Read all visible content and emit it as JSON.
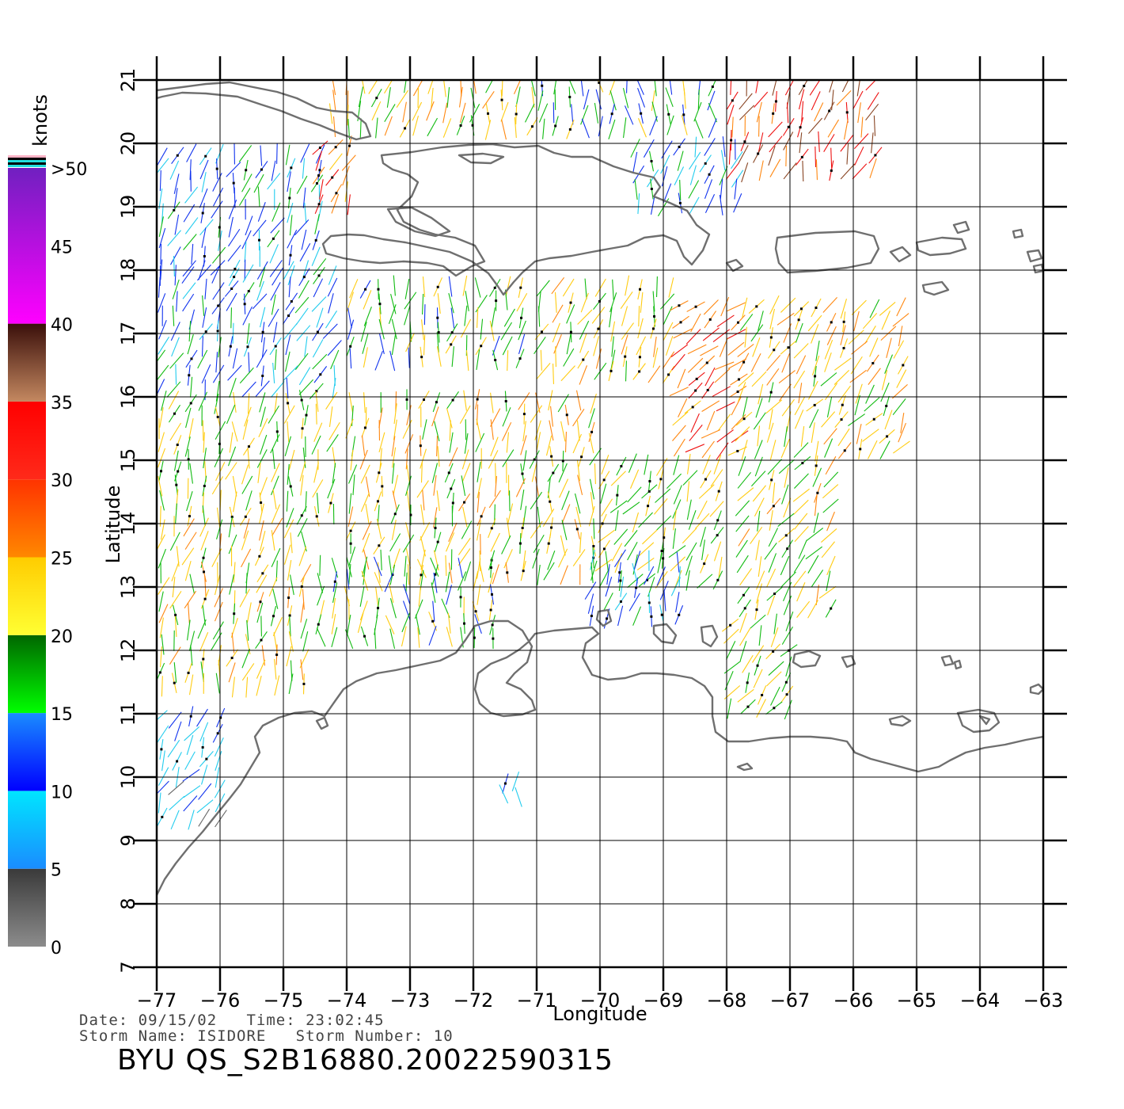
{
  "map": {
    "lon_range": [
      -77,
      -63
    ],
    "lat_range": [
      7,
      21
    ],
    "x_ticks": [
      -77,
      -76,
      -75,
      -74,
      -73,
      -72,
      -71,
      -70,
      -69,
      -68,
      -67,
      -66,
      -65,
      -64,
      -63
    ],
    "y_ticks": [
      7,
      8,
      9,
      10,
      11,
      12,
      13,
      14,
      15,
      16,
      17,
      18,
      19,
      20,
      21
    ],
    "xlabel": "Longitude",
    "ylabel": "Latitude",
    "grid": true,
    "coast_color": "#6f6f6f"
  },
  "legend": {
    "title": "knots",
    "bins": [
      {
        "from": 0,
        "to": 5,
        "top": "#3a3a3a",
        "bottom": "#8c8c8c"
      },
      {
        "from": 5,
        "to": 10,
        "top": "#00e6ff",
        "bottom": "#1a8cff"
      },
      {
        "from": 10,
        "to": 15,
        "top": "#1a8cff",
        "bottom": "#0000ff"
      },
      {
        "from": 15,
        "to": 20,
        "top": "#006600",
        "bottom": "#00ff00"
      },
      {
        "from": 20,
        "to": 25,
        "top": "#ffcc00",
        "bottom": "#ffff33"
      },
      {
        "from": 25,
        "to": 30,
        "top": "#ff3300",
        "bottom": "#ff8800"
      },
      {
        "from": 30,
        "to": 35,
        "top": "#ff0000",
        "bottom": "#ff2a1a"
      },
      {
        "from": 35,
        "to": 40,
        "top": "#3a0f0a",
        "bottom": "#c48860"
      },
      {
        "from": 40,
        "to": 50,
        "top": "#7020c0",
        "bottom": "#ff00ff"
      }
    ],
    "labels": [
      {
        "value": 0,
        "text": "0"
      },
      {
        "value": 5,
        "text": "5"
      },
      {
        "value": 10,
        "text": "10"
      },
      {
        "value": 15,
        "text": "15"
      },
      {
        "value": 20,
        "text": "20"
      },
      {
        "value": 25,
        "text": "25"
      },
      {
        "value": 30,
        "text": "30"
      },
      {
        "value": 35,
        "text": "35"
      },
      {
        "value": 40,
        "text": "40"
      },
      {
        "value": 45,
        "text": "45"
      },
      {
        "value": 50,
        "text": ">50"
      }
    ],
    "cap_stripes": [
      "#ffb3c6",
      "#000000",
      "#22dddd",
      "#000000",
      "#22dddd"
    ]
  },
  "info": {
    "date_time": "Date: 09/15/02   Time: 23:02:45",
    "storm": "Storm Name: ISIDORE   Storm Number: 10",
    "product_id": "BYU  QS_S2B16880.20022590315"
  },
  "wind_regions": [
    {
      "lon": [
        -77.0,
        -74.3
      ],
      "lat": [
        18.0,
        19.9
      ],
      "speed": 12,
      "dir": 250
    },
    {
      "lon": [
        -74.5,
        -73.8
      ],
      "lat": [
        19.0,
        20.0
      ],
      "speed": 28,
      "dir": 60
    },
    {
      "lon": [
        -74.3,
        -71.0
      ],
      "lat": [
        20.1,
        21.0
      ],
      "speed": 22,
      "dir": 80
    },
    {
      "lon": [
        -71.0,
        -68.0
      ],
      "lat": [
        20.2,
        21.0
      ],
      "speed": 16,
      "dir": 90
    },
    {
      "lon": [
        -69.5,
        -67.8
      ],
      "lat": [
        19.0,
        20.0
      ],
      "speed": 12,
      "dir": 80
    },
    {
      "lon": [
        -68.0,
        -65.5
      ],
      "lat": [
        19.4,
        21.0
      ],
      "speed": 33,
      "dir": 70
    },
    {
      "lon": [
        -77.0,
        -74.0
      ],
      "lat": [
        16.0,
        18.0
      ],
      "speed": 12,
      "dir": 70
    },
    {
      "lon": [
        -74.0,
        -71.0
      ],
      "lat": [
        16.5,
        17.8
      ],
      "speed": 18,
      "dir": 80
    },
    {
      "lon": [
        -71.0,
        -68.8
      ],
      "lat": [
        16.3,
        17.8
      ],
      "speed": 21,
      "dir": 70
    },
    {
      "lon": [
        -68.8,
        -67.8
      ],
      "lat": [
        15.0,
        17.5
      ],
      "speed": 29,
      "dir": 45
    },
    {
      "lon": [
        -67.8,
        -65.2
      ],
      "lat": [
        15.0,
        17.5
      ],
      "speed": 23,
      "dir": 60
    },
    {
      "lon": [
        -77.0,
        -74.0
      ],
      "lat": [
        14.0,
        16.0
      ],
      "speed": 20,
      "dir": 80
    },
    {
      "lon": [
        -74.0,
        -70.0
      ],
      "lat": [
        13.2,
        16.0
      ],
      "speed": 22,
      "dir": 80
    },
    {
      "lon": [
        -70.0,
        -68.0
      ],
      "lat": [
        13.0,
        15.0
      ],
      "speed": 20,
      "dir": 60
    },
    {
      "lon": [
        -70.2,
        -68.6
      ],
      "lat": [
        12.3,
        13.5
      ],
      "speed": 12,
      "dir": 80
    },
    {
      "lon": [
        -67.8,
        -66.3
      ],
      "lat": [
        12.5,
        15.0
      ],
      "speed": 21,
      "dir": 60
    },
    {
      "lon": [
        -77.0,
        -74.5
      ],
      "lat": [
        11.3,
        14.0
      ],
      "speed": 22,
      "dir": 80
    },
    {
      "lon": [
        -74.5,
        -71.5
      ],
      "lat": [
        12.0,
        13.4
      ],
      "speed": 18,
      "dir": 90
    },
    {
      "lon": [
        -68.0,
        -67.0
      ],
      "lat": [
        11.0,
        12.5
      ],
      "speed": 20,
      "dir": 60
    },
    {
      "lon": [
        -77.0,
        -75.9
      ],
      "lat": [
        9.2,
        11.0
      ],
      "speed": 9,
      "dir": 240
    },
    {
      "lon": [
        -71.6,
        -71.2
      ],
      "lat": [
        9.5,
        10.0
      ],
      "speed": 8,
      "dir": 90
    }
  ]
}
